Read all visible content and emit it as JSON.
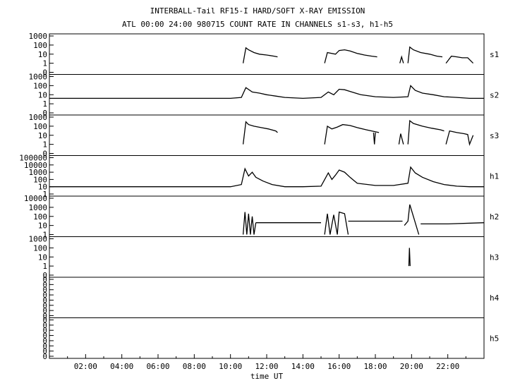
{
  "chart_data": {
    "type": "line",
    "title": "INTERBALL-Tail RF15-I HARD/SOFT X-RAY EMISSION",
    "subtitle": "ATL 00:00 24:00 980715  COUNT RATE IN CHANNELS s1-s3, h1-h5",
    "xlabel": "time UT",
    "x_ticks": [
      "02:00",
      "04:00",
      "06:00",
      "08:00",
      "10:00",
      "12:00",
      "14:00",
      "16:00",
      "18:00",
      "20:00",
      "22:00"
    ],
    "xlim_hours": [
      0,
      24
    ],
    "y_scale": "log",
    "grid": false,
    "panels": [
      {
        "name": "s1",
        "y_ticks": [
          "1000",
          "100",
          "10",
          "1",
          "0"
        ],
        "series": [
          {
            "x": [
              10.7,
              10.85,
              11.0,
              11.3,
              11.6,
              12.0,
              12.4,
              12.6
            ],
            "y": [
              1,
              50,
              30,
              15,
              10,
              8,
              6,
              5
            ]
          },
          {
            "x": [
              15.2,
              15.35,
              15.8,
              16.0,
              16.3,
              16.6,
              17.0,
              17.4,
              17.8,
              18.1
            ],
            "y": [
              1,
              15,
              10,
              25,
              30,
              22,
              12,
              8,
              6,
              5
            ]
          },
          {
            "x": [
              19.35,
              19.45,
              19.55
            ],
            "y": [
              1,
              5,
              1
            ]
          },
          {
            "x": [
              19.8,
              19.9,
              20.1,
              20.5,
              21.0,
              21.4,
              21.7
            ],
            "y": [
              1,
              60,
              30,
              15,
              10,
              6,
              5
            ]
          },
          {
            "x": [
              21.9,
              22.2,
              22.5,
              22.8,
              23.1,
              23.4
            ],
            "y": [
              1,
              6,
              5,
              4,
              4,
              1
            ]
          }
        ]
      },
      {
        "name": "s2",
        "y_ticks": [
          "1000",
          "100",
          "10",
          "1",
          "0"
        ],
        "series": [
          {
            "x": [
              0.0,
              2.0,
              4.0,
              6.0,
              8.0,
              10.0,
              10.6,
              10.85,
              11.2,
              11.6,
              12.0,
              12.5,
              13.0,
              14.0,
              15.0,
              15.4,
              15.7,
              16.0,
              16.3,
              16.7,
              17.2,
              18.0,
              19.0,
              19.8,
              19.95,
              20.2,
              20.6,
              21.2,
              21.8,
              22.5,
              23.2,
              24.0
            ],
            "y": [
              4,
              4,
              4,
              4,
              4,
              4,
              5,
              60,
              20,
              15,
              10,
              7,
              5,
              4,
              5,
              20,
              10,
              40,
              35,
              20,
              10,
              6,
              5,
              6,
              100,
              30,
              15,
              10,
              6,
              5,
              4,
              4
            ]
          }
        ]
      },
      {
        "name": "s3",
        "y_ticks": [
          "1000",
          "100",
          "10",
          "1",
          "0"
        ],
        "series": [
          {
            "x": [
              10.7,
              10.85,
              11.0,
              11.3,
              11.7,
              12.1,
              12.5,
              12.6
            ],
            "y": [
              1,
              300,
              150,
              100,
              70,
              50,
              30,
              20
            ]
          },
          {
            "x": [
              15.2,
              15.35,
              15.6,
              15.9,
              16.2,
              16.6,
              17.0,
              17.5,
              18.2
            ],
            "y": [
              1,
              100,
              50,
              80,
              150,
              120,
              70,
              40,
              20
            ]
          },
          {
            "x": [
              17.9,
              17.95,
              18.0
            ],
            "y": [
              20,
              1,
              20
            ]
          },
          {
            "x": [
              19.3,
              19.4,
              19.55
            ],
            "y": [
              1,
              15,
              1
            ]
          },
          {
            "x": [
              19.8,
              19.9,
              20.1,
              20.6,
              21.1,
              21.6,
              21.8
            ],
            "y": [
              1,
              400,
              200,
              100,
              60,
              40,
              30
            ]
          },
          {
            "x": [
              21.9,
              22.1,
              22.5,
              22.9,
              23.1,
              23.2,
              23.4
            ],
            "y": [
              1,
              30,
              20,
              15,
              12,
              1,
              10
            ]
          }
        ]
      },
      {
        "name": "h1",
        "y_ticks": [
          "100000",
          "10000",
          "1000",
          "100",
          "10",
          "1"
        ],
        "series": [
          {
            "x": [
              0.0,
              2.0,
              4.0,
              6.0,
              8.0,
              10.0,
              10.6,
              10.8,
              11.0,
              11.2,
              11.4,
              11.8,
              12.3,
              13.0,
              14.0,
              15.0,
              15.4,
              15.6,
              15.8,
              16.0,
              16.3,
              16.6,
              17.0,
              18.0,
              19.0,
              19.8,
              19.95,
              20.2,
              20.6,
              21.2,
              21.8,
              22.5,
              23.2,
              24.0
            ],
            "y": [
              10,
              10,
              10,
              10,
              10,
              10,
              20,
              3000,
              300,
              1000,
              200,
              60,
              20,
              10,
              10,
              12,
              800,
              100,
              400,
              2000,
              1000,
              200,
              30,
              15,
              15,
              30,
              5000,
              800,
              200,
              50,
              20,
              12,
              10,
              10
            ]
          }
        ]
      },
      {
        "name": "h2",
        "y_ticks": [
          "10000",
          "1000",
          "100",
          "10",
          "1"
        ],
        "series": [
          {
            "x": [
              10.7,
              10.8,
              10.9,
              11.0,
              11.1,
              11.2,
              11.3,
              11.4
            ],
            "y": [
              1,
              300,
              1,
              200,
              1,
              100,
              1,
              20
            ]
          },
          {
            "x": [
              11.4,
              13.5,
              15.0
            ],
            "y": [
              20,
              20,
              20
            ]
          },
          {
            "x": [
              15.2,
              15.35,
              15.5,
              15.7,
              15.9,
              16.0,
              16.3,
              16.5
            ],
            "y": [
              1,
              200,
              1,
              150,
              1,
              300,
              200,
              1
            ]
          },
          {
            "x": [
              16.5,
              18.0,
              19.5
            ],
            "y": [
              30,
              30,
              30
            ]
          },
          {
            "x": [
              19.6,
              19.8,
              19.9,
              20.1,
              20.4
            ],
            "y": [
              10,
              30,
              2000,
              100,
              1
            ]
          },
          {
            "x": [
              20.5,
              22.0,
              24.0
            ],
            "y": [
              15,
              15,
              20
            ]
          }
        ]
      },
      {
        "name": "h3",
        "y_ticks": [
          "1000",
          "100",
          "10",
          "1",
          "0"
        ],
        "series": [
          {
            "x": [
              19.85,
              19.88,
              19.92
            ],
            "y": [
              1,
              100,
              1
            ]
          }
        ]
      },
      {
        "name": "h4",
        "y_ticks": [
          "0",
          "0",
          "0",
          "0",
          "0",
          "0",
          "0",
          "0"
        ],
        "series": []
      },
      {
        "name": "h5",
        "y_ticks": [
          "0",
          "0",
          "0",
          "0",
          "0",
          "0",
          "0",
          "0"
        ],
        "series": []
      }
    ]
  }
}
